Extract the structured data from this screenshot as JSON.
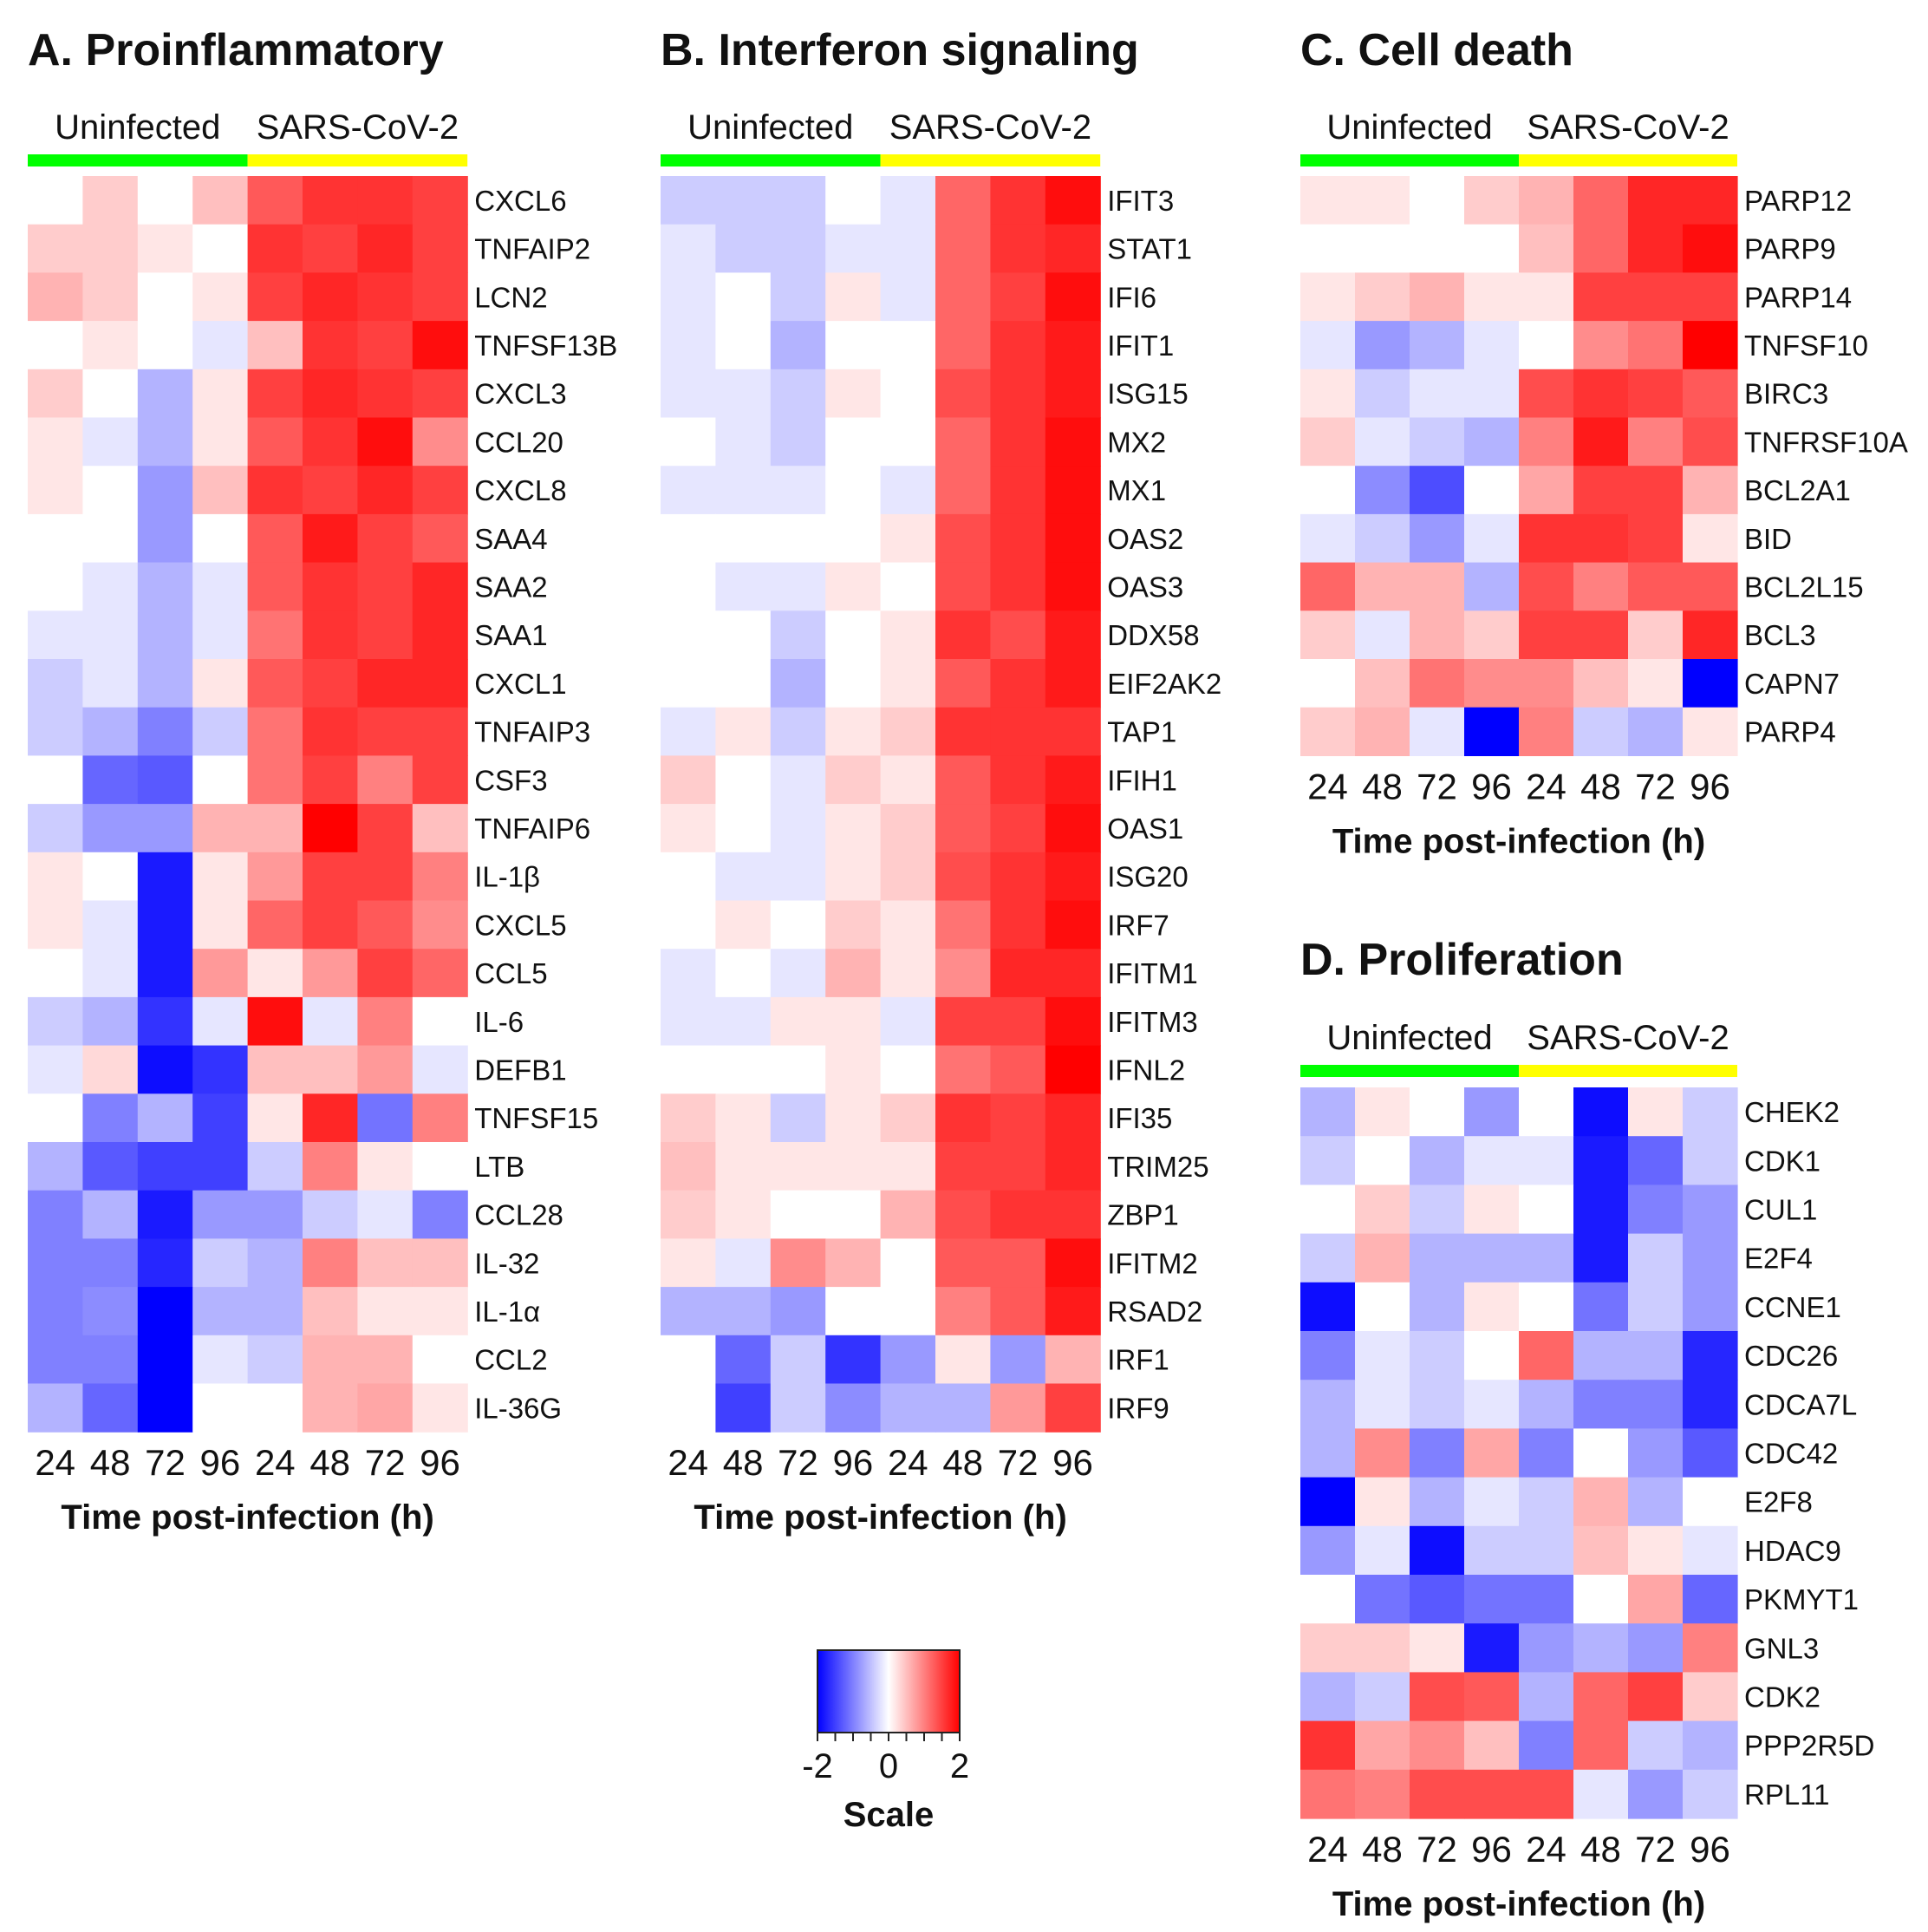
{
  "colors": {
    "low": "#0000ff",
    "mid": "#ffffff",
    "high": "#ff0000",
    "uninfected_bar": "#00ff00",
    "infected_bar": "#ffff00"
  },
  "chart_data": [
    {
      "type": "heatmap",
      "id": "A",
      "title": "A. Proinflammatory",
      "groups": [
        "Uninfected",
        "SARS-CoV-2"
      ],
      "columns": [
        "24",
        "48",
        "72",
        "96",
        "24",
        "48",
        "72",
        "96"
      ],
      "xlabel": "Time post-infection (h)",
      "rows": [
        "CXCL6",
        "TNFAIP2",
        "LCN2",
        "TNFSF13B",
        "CXCL3",
        "CCL20",
        "CXCL8",
        "SAA4",
        "SAA2",
        "SAA1",
        "CXCL1",
        "TNFAIP3",
        "CSF3",
        "TNFAIP6",
        "IL-1β",
        "CXCL5",
        "CCL5",
        "IL-6",
        "DEFB1",
        "TNFSF15",
        "LTB",
        "CCL28",
        "IL-32",
        "IL-1α",
        "CCL2",
        "IL-36G"
      ],
      "values": [
        [
          0.0,
          0.4,
          0.0,
          0.5,
          1.3,
          1.6,
          1.6,
          1.5
        ],
        [
          0.4,
          0.4,
          0.2,
          0.0,
          1.6,
          1.5,
          1.7,
          1.5
        ],
        [
          0.6,
          0.4,
          0.0,
          0.2,
          1.5,
          1.7,
          1.6,
          1.5
        ],
        [
          0.0,
          0.2,
          0.0,
          -0.2,
          0.5,
          1.6,
          1.5,
          1.9
        ],
        [
          0.4,
          0.0,
          -0.6,
          0.2,
          1.5,
          1.7,
          1.6,
          1.5
        ],
        [
          0.2,
          -0.2,
          -0.6,
          0.2,
          1.3,
          1.6,
          1.9,
          0.9
        ],
        [
          0.2,
          0.0,
          -0.8,
          0.5,
          1.6,
          1.5,
          1.7,
          1.5
        ],
        [
          0.0,
          0.0,
          -0.8,
          0.0,
          1.3,
          1.8,
          1.5,
          1.3
        ],
        [
          0.0,
          -0.2,
          -0.6,
          -0.2,
          1.3,
          1.6,
          1.5,
          1.7
        ],
        [
          -0.2,
          -0.2,
          -0.6,
          -0.2,
          1.1,
          1.6,
          1.5,
          1.7
        ],
        [
          -0.4,
          -0.2,
          -0.6,
          0.2,
          1.3,
          1.5,
          1.7,
          1.7
        ],
        [
          -0.4,
          -0.6,
          -1.0,
          -0.4,
          1.1,
          1.6,
          1.5,
          1.5
        ],
        [
          0.0,
          -1.2,
          -1.3,
          0.0,
          1.1,
          1.5,
          1.0,
          1.5
        ],
        [
          -0.4,
          -0.8,
          -0.8,
          0.6,
          0.6,
          2.0,
          1.5,
          0.5
        ],
        [
          0.2,
          0.0,
          -1.8,
          0.2,
          0.8,
          1.5,
          1.5,
          1.0
        ],
        [
          0.2,
          -0.2,
          -1.8,
          0.2,
          1.2,
          1.5,
          1.3,
          0.9
        ],
        [
          0.0,
          -0.2,
          -1.8,
          0.8,
          0.2,
          0.8,
          1.5,
          1.2
        ],
        [
          -0.4,
          -0.6,
          -1.6,
          -0.2,
          1.9,
          -0.2,
          1.0,
          0.0
        ],
        [
          -0.2,
          0.3,
          -1.9,
          -1.6,
          0.5,
          0.5,
          0.8,
          -0.2
        ],
        [
          0.0,
          -1.0,
          -0.6,
          -1.5,
          0.2,
          1.7,
          -1.1,
          1.0
        ],
        [
          -0.6,
          -1.3,
          -1.5,
          -1.5,
          -0.4,
          1.0,
          0.2,
          0.0
        ],
        [
          -1.0,
          -0.6,
          -1.8,
          -0.8,
          -0.8,
          -0.4,
          -0.2,
          -1.0
        ],
        [
          -1.0,
          -1.0,
          -1.7,
          -0.4,
          -0.6,
          1.0,
          0.5,
          0.5
        ],
        [
          -1.0,
          -0.9,
          -2.0,
          -0.6,
          -0.6,
          0.5,
          0.2,
          0.2
        ],
        [
          -1.0,
          -1.0,
          -2.0,
          -0.2,
          -0.4,
          0.6,
          0.6,
          0.0
        ],
        [
          -0.6,
          -1.2,
          -2.0,
          0.0,
          0.0,
          0.6,
          0.7,
          0.2
        ]
      ]
    },
    {
      "type": "heatmap",
      "id": "B",
      "title": "B. Interferon signaling",
      "groups": [
        "Uninfected",
        "SARS-CoV-2"
      ],
      "columns": [
        "24",
        "48",
        "72",
        "96",
        "24",
        "48",
        "72",
        "96"
      ],
      "xlabel": "Time post-infection (h)",
      "rows": [
        "IFIT3",
        "STAT1",
        "IFI6",
        "IFIT1",
        "ISG15",
        "MX2",
        "MX1",
        "OAS2",
        "OAS3",
        "DDX58",
        "EIF2AK2",
        "TAP1",
        "IFIH1",
        "OAS1",
        "ISG20",
        "IRF7",
        "IFITM1",
        "IFITM3",
        "IFNL2",
        "IFI35",
        "TRIM25",
        "ZBP1",
        "IFITM2",
        "RSAD2",
        "IRF1",
        "IRF9"
      ],
      "values": [
        [
          -0.4,
          -0.4,
          -0.4,
          0.0,
          -0.2,
          1.2,
          1.6,
          1.9
        ],
        [
          -0.2,
          -0.4,
          -0.4,
          -0.2,
          -0.2,
          1.2,
          1.6,
          1.7
        ],
        [
          -0.2,
          0.0,
          -0.4,
          0.2,
          -0.2,
          1.2,
          1.5,
          1.9
        ],
        [
          -0.2,
          0.0,
          -0.6,
          0.0,
          0.0,
          1.2,
          1.6,
          1.8
        ],
        [
          -0.2,
          -0.2,
          -0.4,
          0.2,
          0.0,
          1.4,
          1.6,
          1.8
        ],
        [
          0.0,
          -0.2,
          -0.4,
          0.0,
          0.0,
          1.2,
          1.6,
          1.9
        ],
        [
          -0.2,
          -0.2,
          -0.2,
          0.0,
          -0.2,
          1.2,
          1.6,
          1.9
        ],
        [
          0.0,
          0.0,
          0.0,
          0.0,
          0.2,
          1.4,
          1.6,
          1.9
        ],
        [
          0.0,
          -0.2,
          -0.2,
          0.2,
          0.0,
          1.4,
          1.6,
          1.9
        ],
        [
          0.0,
          0.0,
          -0.4,
          0.0,
          0.2,
          1.6,
          1.4,
          1.8
        ],
        [
          0.0,
          0.0,
          -0.6,
          0.0,
          0.2,
          1.3,
          1.6,
          1.8
        ],
        [
          -0.2,
          0.2,
          -0.4,
          0.2,
          0.4,
          1.6,
          1.6,
          1.6
        ],
        [
          0.4,
          0.0,
          -0.2,
          0.4,
          0.2,
          1.3,
          1.6,
          1.8
        ],
        [
          0.2,
          0.0,
          -0.2,
          0.2,
          0.4,
          1.3,
          1.5,
          1.9
        ],
        [
          0.0,
          -0.2,
          -0.2,
          0.2,
          0.4,
          1.4,
          1.6,
          1.8
        ],
        [
          0.0,
          0.2,
          0.0,
          0.4,
          0.2,
          1.1,
          1.6,
          1.9
        ],
        [
          -0.2,
          0.0,
          -0.2,
          0.6,
          0.2,
          0.9,
          1.7,
          1.7
        ],
        [
          -0.2,
          -0.2,
          0.2,
          0.2,
          -0.2,
          1.5,
          1.5,
          1.9
        ],
        [
          0.0,
          0.0,
          0.0,
          0.2,
          0.0,
          1.1,
          1.3,
          2.0
        ],
        [
          0.4,
          0.2,
          -0.4,
          0.2,
          0.4,
          1.6,
          1.5,
          1.7
        ],
        [
          0.5,
          0.2,
          0.2,
          0.2,
          0.2,
          1.5,
          1.5,
          1.7
        ],
        [
          0.4,
          0.2,
          0.0,
          0.0,
          0.6,
          1.4,
          1.6,
          1.6
        ],
        [
          0.2,
          -0.2,
          0.9,
          0.6,
          0.0,
          1.3,
          1.3,
          1.9
        ],
        [
          -0.6,
          -0.6,
          -0.8,
          0.0,
          0.0,
          1.0,
          1.3,
          1.8
        ],
        [
          0.0,
          -1.2,
          -0.4,
          -1.6,
          -0.8,
          0.2,
          -0.8,
          0.6
        ],
        [
          0.0,
          -1.5,
          -0.4,
          -0.9,
          -0.6,
          -0.6,
          0.8,
          1.5
        ]
      ]
    },
    {
      "type": "heatmap",
      "id": "C",
      "title": "C. Cell death",
      "groups": [
        "Uninfected",
        "SARS-CoV-2"
      ],
      "columns": [
        "24",
        "48",
        "72",
        "96",
        "24",
        "48",
        "72",
        "96"
      ],
      "xlabel": "Time post-infection (h)",
      "rows": [
        "PARP12",
        "PARP9",
        "PARP14",
        "TNFSF10",
        "BIRC3",
        "TNFRSF10A",
        "BCL2A1",
        "BID",
        "BCL2L15",
        "BCL3",
        "CAPN7",
        "PARP4"
      ],
      "values": [
        [
          0.2,
          0.2,
          0.0,
          0.4,
          0.6,
          1.2,
          1.7,
          1.7
        ],
        [
          0.0,
          0.0,
          0.0,
          0.0,
          0.5,
          1.2,
          1.7,
          1.9
        ],
        [
          0.2,
          0.4,
          0.6,
          0.2,
          0.2,
          1.5,
          1.5,
          1.5
        ],
        [
          -0.2,
          -0.8,
          -0.6,
          -0.2,
          0.0,
          0.9,
          1.1,
          2.0
        ],
        [
          0.2,
          -0.4,
          -0.2,
          -0.2,
          1.4,
          1.6,
          1.5,
          1.3
        ],
        [
          0.4,
          -0.2,
          -0.4,
          -0.6,
          1.0,
          1.8,
          1.0,
          1.4
        ],
        [
          0.0,
          -0.9,
          -1.4,
          0.0,
          0.7,
          1.5,
          1.5,
          0.6
        ],
        [
          -0.2,
          -0.4,
          -0.8,
          -0.2,
          1.6,
          1.6,
          1.5,
          0.2
        ],
        [
          1.2,
          0.6,
          0.6,
          -0.6,
          1.4,
          1.0,
          1.3,
          1.3
        ],
        [
          0.4,
          -0.2,
          0.6,
          0.4,
          1.5,
          1.5,
          0.4,
          1.7
        ],
        [
          0.0,
          0.5,
          1.1,
          0.9,
          0.9,
          0.5,
          0.2,
          -2.0
        ],
        [
          0.4,
          0.6,
          -0.2,
          -2.0,
          1.0,
          -0.4,
          -0.6,
          0.2
        ]
      ]
    },
    {
      "type": "heatmap",
      "id": "D",
      "title": "D. Proliferation",
      "groups": [
        "Uninfected",
        "SARS-CoV-2"
      ],
      "columns": [
        "24",
        "48",
        "72",
        "96",
        "24",
        "48",
        "72",
        "96"
      ],
      "xlabel": "Time post-infection (h)",
      "rows": [
        "CHEK2",
        "CDK1",
        "CUL1",
        "E2F4",
        "CCNE1",
        "CDC26",
        "CDCA7L",
        "CDC42",
        "E2F8",
        "HDAC9",
        "PKMYT1",
        "GNL3",
        "CDK2",
        "PPP2R5D",
        "RPL11"
      ],
      "values": [
        [
          -0.6,
          0.2,
          0.0,
          -0.8,
          0.0,
          -1.9,
          0.2,
          -0.4
        ],
        [
          -0.4,
          0.0,
          -0.6,
          -0.2,
          -0.2,
          -1.8,
          -1.2,
          -0.4
        ],
        [
          0.0,
          0.4,
          -0.4,
          0.2,
          0.0,
          -1.8,
          -1.0,
          -0.8
        ],
        [
          -0.4,
          0.6,
          -0.6,
          -0.6,
          -0.6,
          -1.8,
          -0.4,
          -0.8
        ],
        [
          -1.9,
          0.0,
          -0.6,
          0.2,
          0.0,
          -1.1,
          -0.4,
          -0.8
        ],
        [
          -1.0,
          -0.2,
          -0.4,
          0.0,
          1.2,
          -0.6,
          -0.6,
          -1.7
        ],
        [
          -0.6,
          -0.2,
          -0.4,
          -0.2,
          -0.6,
          -1.0,
          -1.0,
          -1.7
        ],
        [
          -0.6,
          0.9,
          -1.0,
          0.7,
          -1.0,
          0.0,
          -0.8,
          -1.3
        ],
        [
          -2.0,
          0.2,
          -0.6,
          -0.2,
          -0.4,
          0.6,
          -0.6,
          0.0
        ],
        [
          -0.8,
          -0.2,
          -1.9,
          -0.4,
          -0.4,
          0.5,
          0.2,
          -0.2
        ],
        [
          0.0,
          -1.1,
          -1.3,
          -1.1,
          -1.1,
          0.0,
          0.7,
          -1.2
        ],
        [
          0.4,
          0.4,
          0.2,
          -1.8,
          -0.8,
          -0.6,
          -0.8,
          1.0
        ],
        [
          -0.6,
          -0.4,
          1.4,
          1.3,
          -0.6,
          1.2,
          1.5,
          0.4
        ],
        [
          1.6,
          0.7,
          0.9,
          0.5,
          -1.0,
          1.2,
          -0.4,
          -0.6
        ],
        [
          1.1,
          1.0,
          1.4,
          1.4,
          1.4,
          -0.2,
          -0.8,
          -0.4
        ]
      ]
    }
  ],
  "scale": {
    "title": "Scale",
    "ticks": [
      "-2",
      "0",
      "2"
    ],
    "min": -2,
    "max": 2
  }
}
